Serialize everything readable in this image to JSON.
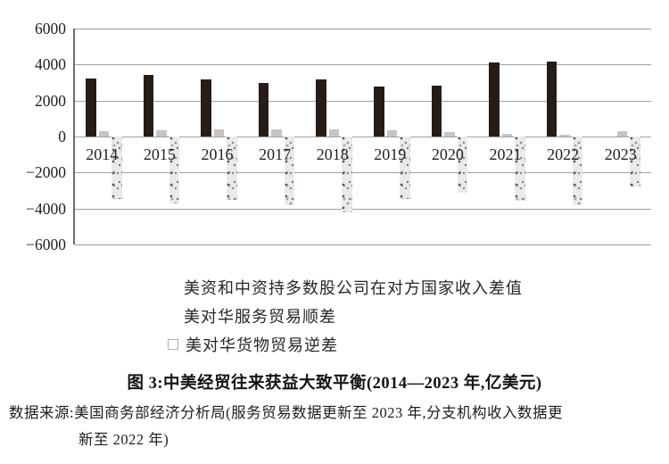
{
  "chart_data": {
    "type": "bar",
    "title": "图 3:中美经贸往来获益大致平衡(2014—2023 年,亿美元)",
    "unit": "亿美元",
    "categories": [
      "2014",
      "2015",
      "2016",
      "2017",
      "2018",
      "2019",
      "2020",
      "2021",
      "2022",
      "2023"
    ],
    "series": [
      {
        "name": "美资和中资持多数股公司在对方国家收入差值",
        "marker_color": "#261d17",
        "style": "solid-black",
        "values": [
          3200,
          3400,
          3150,
          3000,
          3150,
          2800,
          2850,
          4100,
          4150,
          null
        ]
      },
      {
        "name": "美对华服务贸易顺差",
        "marker_color": "#bdbab7",
        "style": "solid-gray",
        "values": [
          280,
          330,
          380,
          400,
          410,
          360,
          250,
          150,
          120,
          300
        ]
      },
      {
        "name": "美对华货物贸易逆差",
        "marker_color": "#eceae8",
        "style": "speckled",
        "values": [
          -3450,
          -3700,
          -3500,
          -3800,
          -4200,
          -3450,
          -3100,
          -3550,
          -3800,
          -2800
        ]
      }
    ],
    "ylim": [
      -6000,
      6000
    ],
    "ytick_interval": 2000,
    "yticks": [
      "6000",
      "4000",
      "2000",
      "0",
      "−2000",
      "−4000",
      "−6000"
    ],
    "grid": true,
    "legend_position": "bottom-left",
    "xlabel": "",
    "ylabel": ""
  },
  "caption": {
    "text": "图 3:中美经贸往来获益大致平衡(2014—2023 年,亿美元)"
  },
  "source": {
    "line1": "数据来源:美国商务部经济分析局(服务贸易数据更新至 2023 年,分支机构收入数据更",
    "line2": "新至 2022 年)"
  }
}
